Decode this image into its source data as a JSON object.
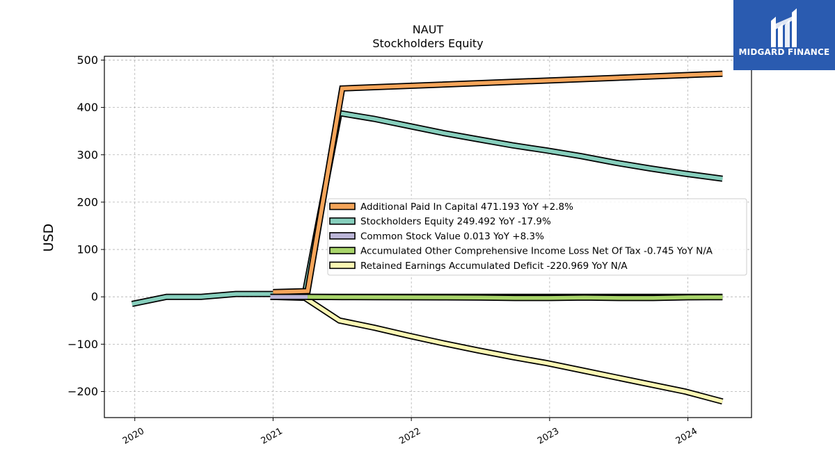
{
  "chart_data": {
    "type": "line",
    "title": "NAUT",
    "subtitle": "Stockholders  Equity",
    "ylabel": "USD",
    "xlim": [
      2019.78,
      2024.46
    ],
    "ylim": [
      -255,
      508
    ],
    "yticks": [
      500,
      400,
      300,
      200,
      100,
      0,
      -100,
      -200
    ],
    "ytick_labels": [
      "500",
      "400",
      "300",
      "200",
      "100",
      "0",
      "−100",
      "−200"
    ],
    "xticks": [
      2020,
      2021,
      2022,
      2023,
      2024
    ],
    "xtick_labels": [
      "2020",
      "2021",
      "2022",
      "2023",
      "2024"
    ],
    "grid": true,
    "legend_position": "center-right",
    "series": [
      {
        "name": "Additional Paid In Capital",
        "legend_label": "Additional Paid In Capital  471.193 YoY +2.8%",
        "color": "#f5a55a",
        "x": [
          2021.0,
          2021.25,
          2021.5,
          2024.25
        ],
        "y": [
          10,
          12,
          440,
          471.193
        ]
      },
      {
        "name": "Stockholders Equity",
        "legend_label": "Stockholders Equity  249.492 YoY -17.9%",
        "color": "#86cebc",
        "x": [
          2019.98,
          2020.23,
          2020.48,
          2020.73,
          2020.98,
          2021.23,
          2021.48,
          2021.73,
          2021.98,
          2022.23,
          2022.48,
          2022.73,
          2022.98,
          2023.23,
          2023.48,
          2023.73,
          2023.98,
          2024.25
        ],
        "y": [
          -15,
          0,
          0,
          6,
          6,
          7,
          388,
          376,
          361,
          346,
          333,
          320,
          309,
          297,
          283,
          271,
          260,
          249.492
        ]
      },
      {
        "name": "Common Stock Value",
        "legend_label": "Common Stock Value  0.013 YoY +8.3%",
        "color": "#bcb6d8",
        "x": [
          2020.98,
          2024.25
        ],
        "y": [
          0.01,
          0.013
        ]
      },
      {
        "name": "Accumulated Other Comprehensive Income Loss Net Of Tax",
        "legend_label": "Accumulated Other Comprehensive Income Loss Net Of Tax  -0.745 YoY N/A",
        "color": "#a8d46a",
        "x": [
          2021.25,
          2021.5,
          2021.75,
          2022.0,
          2022.25,
          2022.5,
          2022.75,
          2023.0,
          2023.25,
          2023.5,
          2023.75,
          2024.0,
          2024.25
        ],
        "y": [
          0,
          -0.5,
          -0.8,
          -1.0,
          -1.2,
          -1.5,
          -2.5,
          -2.5,
          -1.5,
          -2.5,
          -2.5,
          -1.0,
          -0.745
        ]
      },
      {
        "name": "Retained Earnings Accumulated Deficit",
        "legend_label": "Retained Earnings Accumulated Deficit  -220.969 YoY N/A",
        "color": "#fbf7b4",
        "x": [
          2020.98,
          2021.23,
          2021.48,
          2021.73,
          2021.98,
          2022.23,
          2022.48,
          2022.73,
          2022.98,
          2023.23,
          2023.48,
          2023.73,
          2023.98,
          2024.25
        ],
        "y": [
          0,
          -2,
          -50,
          -65,
          -82,
          -98,
          -113,
          -127,
          -140,
          -155,
          -170,
          -185,
          -200,
          -220.969
        ]
      }
    ]
  },
  "logo": {
    "text": "MIDGARD FINANCE",
    "background": "#2a5bb0",
    "icon": "midgard-logo-icon"
  }
}
